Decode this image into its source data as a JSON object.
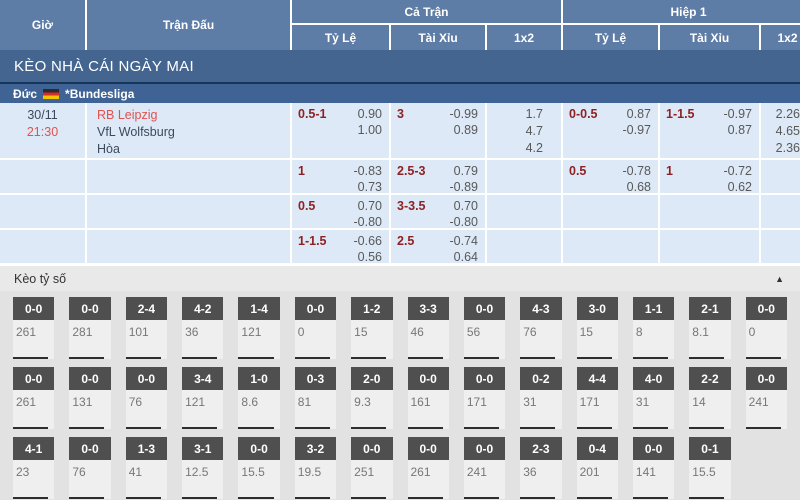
{
  "colors": {
    "header_blue": "#5d7ca6",
    "banner_blue": "#44658f",
    "league_blue": "#3e6394",
    "league_border": "#16365c",
    "row_bg": "#dde9f7",
    "maroon": "#8e2222",
    "odds_gray": "#585858",
    "red": "#e2514e",
    "dark_text": "#3a4a5c",
    "chip_dark": "#4f4f4f",
    "section_bg": "#e2e2e2",
    "bar_bg": "#e9e9e9",
    "card_bg": "#efefef",
    "val_gray": "#777777"
  },
  "header": {
    "col_time": "Giờ",
    "col_match": "Trận Đấu",
    "group_full": "Cả Trận",
    "group_h1": "Hiệp 1",
    "sub_ratio": "Tỷ Lệ",
    "sub_ou": "Tài Xỉu",
    "sub_1x2": "1x2"
  },
  "banner": {
    "title": "KÈO NHÀ CÁI NGÀY MAI"
  },
  "league": {
    "country": "Đức",
    "flag_icon": "germany-flag-icon",
    "name": "*Bundesliga"
  },
  "match": {
    "date": "30/11",
    "time": "21:30",
    "home": "RB Leipzig",
    "away": "VfL Wolfsburg",
    "draw_label": "Hòa",
    "full_1x2": [
      "1.7",
      "4.7",
      "4.2"
    ],
    "h1_1x2": [
      "2.26",
      "4.65",
      "2.36"
    ],
    "rows": [
      {
        "ft_hc": "0.5-1",
        "ft_hc_odds": [
          "0.90",
          "1.00"
        ],
        "ft_ou": "3",
        "ft_ou_odds": [
          "-0.99",
          "0.89"
        ],
        "h1_hc": "0-0.5",
        "h1_hc_odds": [
          "0.87",
          "-0.97"
        ],
        "h1_ou": "1-1.5",
        "h1_ou_odds": [
          "-0.97",
          "0.87"
        ]
      },
      {
        "ft_hc": "1",
        "ft_hc_odds": [
          "-0.83",
          "0.73"
        ],
        "ft_ou": "2.5-3",
        "ft_ou_odds": [
          "0.79",
          "-0.89"
        ],
        "h1_hc": "0.5",
        "h1_hc_odds": [
          "-0.78",
          "0.68"
        ],
        "h1_ou": "1",
        "h1_ou_odds": [
          "-0.72",
          "0.62"
        ]
      },
      {
        "ft_hc": "0.5",
        "ft_hc_odds": [
          "0.70",
          "-0.80"
        ],
        "ft_ou": "3-3.5",
        "ft_ou_odds": [
          "0.70",
          "-0.80"
        ]
      },
      {
        "ft_hc": "1-1.5",
        "ft_hc_odds": [
          "-0.66",
          "0.56"
        ],
        "ft_ou": "2.5",
        "ft_ou_odds": [
          "-0.74",
          "0.64"
        ]
      }
    ]
  },
  "score_section": {
    "title": "Kèo tỷ số",
    "collapse_icon": "▲",
    "rows": [
      [
        {
          "score": "0-0",
          "odds": "261"
        },
        {
          "score": "0-0",
          "odds": "281"
        },
        {
          "score": "2-4",
          "odds": "101"
        },
        {
          "score": "4-2",
          "odds": "36"
        },
        {
          "score": "1-4",
          "odds": "121"
        },
        {
          "score": "0-0",
          "odds": "0"
        },
        {
          "score": "1-2",
          "odds": "15"
        },
        {
          "score": "3-3",
          "odds": "46"
        },
        {
          "score": "0-0",
          "odds": "56"
        },
        {
          "score": "4-3",
          "odds": "76"
        },
        {
          "score": "3-0",
          "odds": "15"
        },
        {
          "score": "1-1",
          "odds": "8"
        },
        {
          "score": "2-1",
          "odds": "8.1"
        },
        {
          "score": "0-0",
          "odds": "0"
        }
      ],
      [
        {
          "score": "0-0",
          "odds": "261"
        },
        {
          "score": "0-0",
          "odds": "131"
        },
        {
          "score": "0-0",
          "odds": "76"
        },
        {
          "score": "3-4",
          "odds": "121"
        },
        {
          "score": "1-0",
          "odds": "8.6"
        },
        {
          "score": "0-3",
          "odds": "81"
        },
        {
          "score": "2-0",
          "odds": "9.3"
        },
        {
          "score": "0-0",
          "odds": "161"
        },
        {
          "score": "0-0",
          "odds": "171"
        },
        {
          "score": "0-2",
          "odds": "31"
        },
        {
          "score": "4-4",
          "odds": "171"
        },
        {
          "score": "4-0",
          "odds": "31"
        },
        {
          "score": "2-2",
          "odds": "14"
        },
        {
          "score": "0-0",
          "odds": "241"
        }
      ],
      [
        {
          "score": "4-1",
          "odds": "23"
        },
        {
          "score": "0-0",
          "odds": "76"
        },
        {
          "score": "1-3",
          "odds": "41"
        },
        {
          "score": "3-1",
          "odds": "12.5"
        },
        {
          "score": "0-0",
          "odds": "15.5"
        },
        {
          "score": "3-2",
          "odds": "19.5"
        },
        {
          "score": "0-0",
          "odds": "251"
        },
        {
          "score": "0-0",
          "odds": "261"
        },
        {
          "score": "0-0",
          "odds": "241"
        },
        {
          "score": "2-3",
          "odds": "36"
        },
        {
          "score": "0-4",
          "odds": "201"
        },
        {
          "score": "0-0",
          "odds": "141"
        },
        {
          "score": "0-1",
          "odds": "15.5"
        }
      ]
    ]
  }
}
